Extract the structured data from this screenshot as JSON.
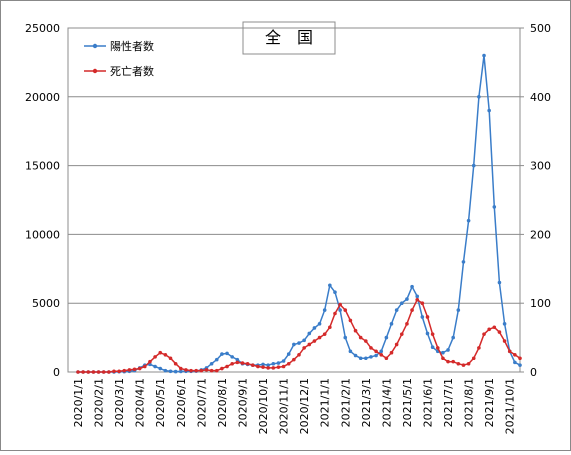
{
  "chart_data": {
    "type": "line",
    "title": "全　国",
    "categories": [
      "2020/1/1",
      null,
      null,
      null,
      "2020/2/1",
      null,
      null,
      null,
      "2020/3/1",
      null,
      null,
      null,
      "2020/4/1",
      null,
      null,
      null,
      "2020/5/1",
      null,
      null,
      null,
      "2020/6/1",
      null,
      null,
      null,
      "2020/7/1",
      null,
      null,
      null,
      "2020/8/1",
      null,
      null,
      null,
      "2020/9/1",
      null,
      null,
      null,
      "2020/10/1",
      null,
      null,
      null,
      "2020/11/1",
      null,
      null,
      null,
      "2020/12/1",
      null,
      null,
      null,
      "2021/1/1",
      null,
      null,
      null,
      "2021/2/1",
      null,
      null,
      null,
      "2021/3/1",
      null,
      null,
      null,
      "2021/4/1",
      null,
      null,
      null,
      "2021/5/1",
      null,
      null,
      null,
      "2021/6/1",
      null,
      null,
      null,
      "2021/7/1",
      null,
      null,
      null,
      "2021/8/1",
      null,
      null,
      null,
      "2021/9/1",
      null,
      null,
      null,
      "2021/10/1",
      null,
      null
    ],
    "series": [
      {
        "name": "陽性者数",
        "color": "#3a7dc9",
        "axis": "y",
        "values": [
          0,
          0,
          0,
          0,
          0,
          0,
          0,
          0,
          20,
          30,
          50,
          100,
          300,
          500,
          550,
          400,
          250,
          100,
          50,
          30,
          40,
          50,
          50,
          60,
          150,
          300,
          600,
          900,
          1300,
          1350,
          1100,
          900,
          600,
          550,
          500,
          500,
          550,
          500,
          600,
          650,
          800,
          1300,
          2000,
          2100,
          2300,
          2800,
          3200,
          3500,
          4500,
          6300,
          5800,
          4500,
          2500,
          1500,
          1200,
          1000,
          1000,
          1100,
          1200,
          1500,
          2500,
          3500,
          4500,
          5000,
          5300,
          6200,
          5500,
          4000,
          2800,
          1800,
          1500,
          1400,
          1600,
          2500,
          4500,
          8000,
          11000,
          15000,
          20000,
          23000,
          19000,
          12000,
          6500,
          3500,
          1500,
          700,
          500
        ]
      },
      {
        "name": "死亡者数",
        "color": "#d42a2a",
        "axis": "y2",
        "values": [
          0,
          0,
          0,
          0,
          0,
          0,
          0,
          1,
          1,
          2,
          3,
          4,
          5,
          8,
          15,
          22,
          28,
          25,
          20,
          12,
          5,
          3,
          2,
          2,
          2,
          3,
          2,
          2,
          5,
          8,
          12,
          14,
          13,
          12,
          10,
          8,
          7,
          6,
          6,
          7,
          8,
          12,
          18,
          25,
          35,
          40,
          45,
          50,
          55,
          65,
          85,
          98,
          90,
          75,
          60,
          50,
          45,
          35,
          30,
          25,
          20,
          28,
          40,
          55,
          70,
          90,
          105,
          100,
          80,
          55,
          35,
          20,
          15,
          15,
          12,
          10,
          12,
          20,
          35,
          55,
          62,
          65,
          58,
          45,
          30,
          25,
          20
        ]
      }
    ],
    "ylim": [
      0,
      25000
    ],
    "yticks": [
      0,
      5000,
      10000,
      15000,
      20000,
      25000
    ],
    "y2lim": [
      0,
      500
    ],
    "y2ticks": [
      0,
      100,
      200,
      300,
      400,
      500
    ],
    "grid": true,
    "legend": "upper-left"
  }
}
